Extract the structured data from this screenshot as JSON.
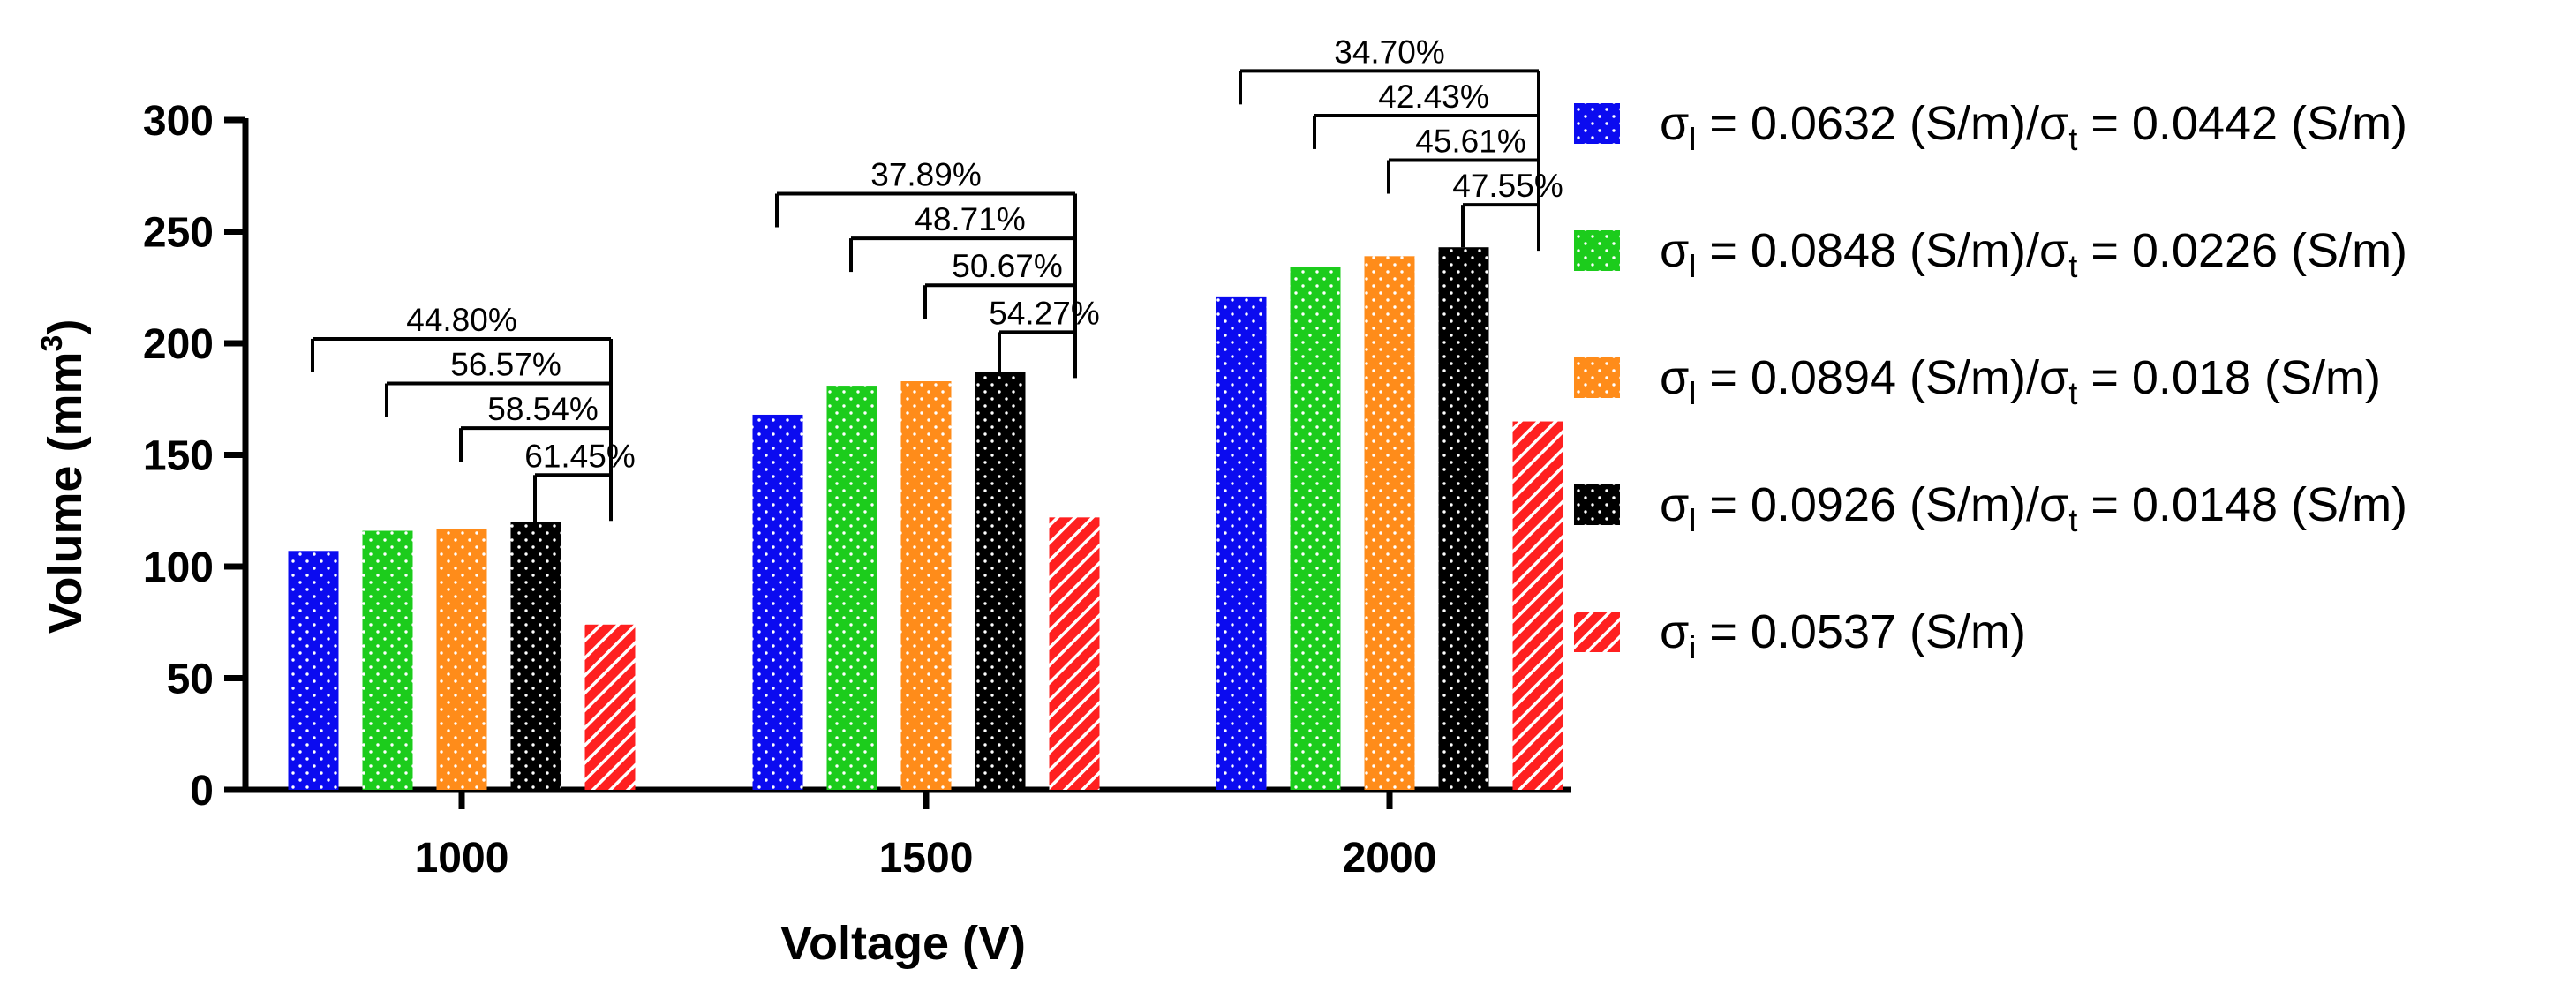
{
  "chart_data": {
    "type": "bar",
    "title": "",
    "xlabel": "Voltage (V)",
    "ylabel": {
      "main": "Volume (mm",
      "sup": "3",
      "close": ")"
    },
    "ylim": [
      0,
      300
    ],
    "yticks": [
      0,
      50,
      100,
      150,
      200,
      250,
      300
    ],
    "grid": false,
    "legend_position": "right",
    "categories": [
      "1000",
      "1500",
      "2000"
    ],
    "series": [
      {
        "name": "σl = 0.0632 (S/m)/σt = 0.0442 (S/m)",
        "label": {
          "a": "σ",
          "a_sub": "l",
          "b": " = 0.0632 (S/m)/σ",
          "b_sub": "t",
          "c": " = 0.0442 (S/m)"
        },
        "color": "#0b0bf0",
        "pattern": "dots",
        "values": [
          107,
          168,
          221
        ]
      },
      {
        "name": "σl = 0.0848 (S/m)/σt = 0.0226 (S/m)",
        "label": {
          "a": "σ",
          "a_sub": "l",
          "b": " = 0.0848 (S/m)/σ",
          "b_sub": "t",
          "c": " = 0.0226 (S/m)"
        },
        "color": "#1ccc1c",
        "pattern": "dots",
        "values": [
          116,
          181,
          234
        ]
      },
      {
        "name": "σl = 0.0894 (S/m)/σt = 0.018 (S/m)",
        "label": {
          "a": "σ",
          "a_sub": "l",
          "b": " = 0.0894 (S/m)/σ",
          "b_sub": "t",
          "c": " = 0.018 (S/m)"
        },
        "color": "#ff8c1a",
        "pattern": "dots",
        "values": [
          117,
          183,
          239
        ]
      },
      {
        "name": "σl = 0.0926 (S/m)/σt = 0.0148 (S/m)",
        "label": {
          "a": "σ",
          "a_sub": "l",
          "b": " = 0.0926 (S/m)/σ",
          "b_sub": "t",
          "c": " = 0.0148 (S/m)"
        },
        "color": "#000000",
        "pattern": "dots",
        "values": [
          120,
          187,
          243
        ]
      },
      {
        "name": "σi = 0.0537 (S/m)",
        "label": {
          "a": "σ",
          "a_sub": "i",
          "b": " = 0.0537 (S/m)",
          "b_sub": "",
          "c": ""
        },
        "color": "#ff2020",
        "pattern": "stripes",
        "values": [
          74,
          122,
          165
        ]
      }
    ],
    "annotations": [
      {
        "group": 0,
        "labels": [
          "44.80%",
          "56.57%",
          "58.54%",
          "61.45%"
        ],
        "levels": [
          202,
          182,
          162,
          141
        ]
      },
      {
        "group": 1,
        "labels": [
          "37.89%",
          "48.71%",
          "50.67%",
          "54.27%"
        ],
        "levels": [
          267,
          247,
          226,
          205
        ]
      },
      {
        "group": 2,
        "labels": [
          "34.70%",
          "42.43%",
          "45.61%",
          "47.55%"
        ],
        "levels": [
          322,
          302,
          282,
          262
        ]
      }
    ]
  }
}
